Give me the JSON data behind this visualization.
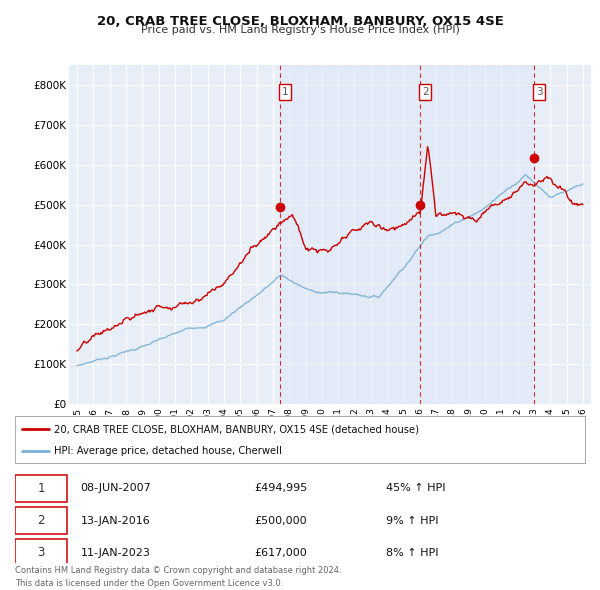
{
  "title": "20, CRAB TREE CLOSE, BLOXHAM, BANBURY, OX15 4SE",
  "subtitle": "Price paid vs. HM Land Registry's House Price Index (HPI)",
  "legend_entries": [
    "20, CRAB TREE CLOSE, BLOXHAM, BANBURY, OX15 4SE (detached house)",
    "HPI: Average price, detached house, Cherwell"
  ],
  "legend_colors": [
    "#cc0000",
    "#7ab0d4"
  ],
  "sale_markers": [
    {
      "label": "1",
      "date_x": 2007.44,
      "price": 494995
    },
    {
      "label": "2",
      "date_x": 2016.04,
      "price": 500000
    },
    {
      "label": "3",
      "date_x": 2023.03,
      "price": 617000
    }
  ],
  "vlines": [
    2007.44,
    2016.04,
    2023.03
  ],
  "table_data": [
    [
      "1",
      "08-JUN-2007",
      "£494,995",
      "45% ↑ HPI"
    ],
    [
      "2",
      "13-JAN-2016",
      "£500,000",
      "9% ↑ HPI"
    ],
    [
      "3",
      "11-JAN-2023",
      "£617,000",
      "8% ↑ HPI"
    ]
  ],
  "footnote": "Contains HM Land Registry data © Crown copyright and database right 2024.\nThis data is licensed under the Open Government Licence v3.0.",
  "ylim": [
    0,
    850000
  ],
  "xlim": [
    1994.5,
    2026.5
  ],
  "yticks": [
    0,
    100000,
    200000,
    300000,
    400000,
    500000,
    600000,
    700000,
    800000
  ],
  "ytick_labels": [
    "£0",
    "£100K",
    "£200K",
    "£300K",
    "£400K",
    "£500K",
    "£600K",
    "£700K",
    "£800K"
  ],
  "background_color": "#ffffff",
  "plot_bg_color": "#e8eef8",
  "grid_color": "#ffffff",
  "red_line_color": "#cc0000",
  "blue_line_color": "#7ab0d4",
  "shade_color": "#dce8f5"
}
